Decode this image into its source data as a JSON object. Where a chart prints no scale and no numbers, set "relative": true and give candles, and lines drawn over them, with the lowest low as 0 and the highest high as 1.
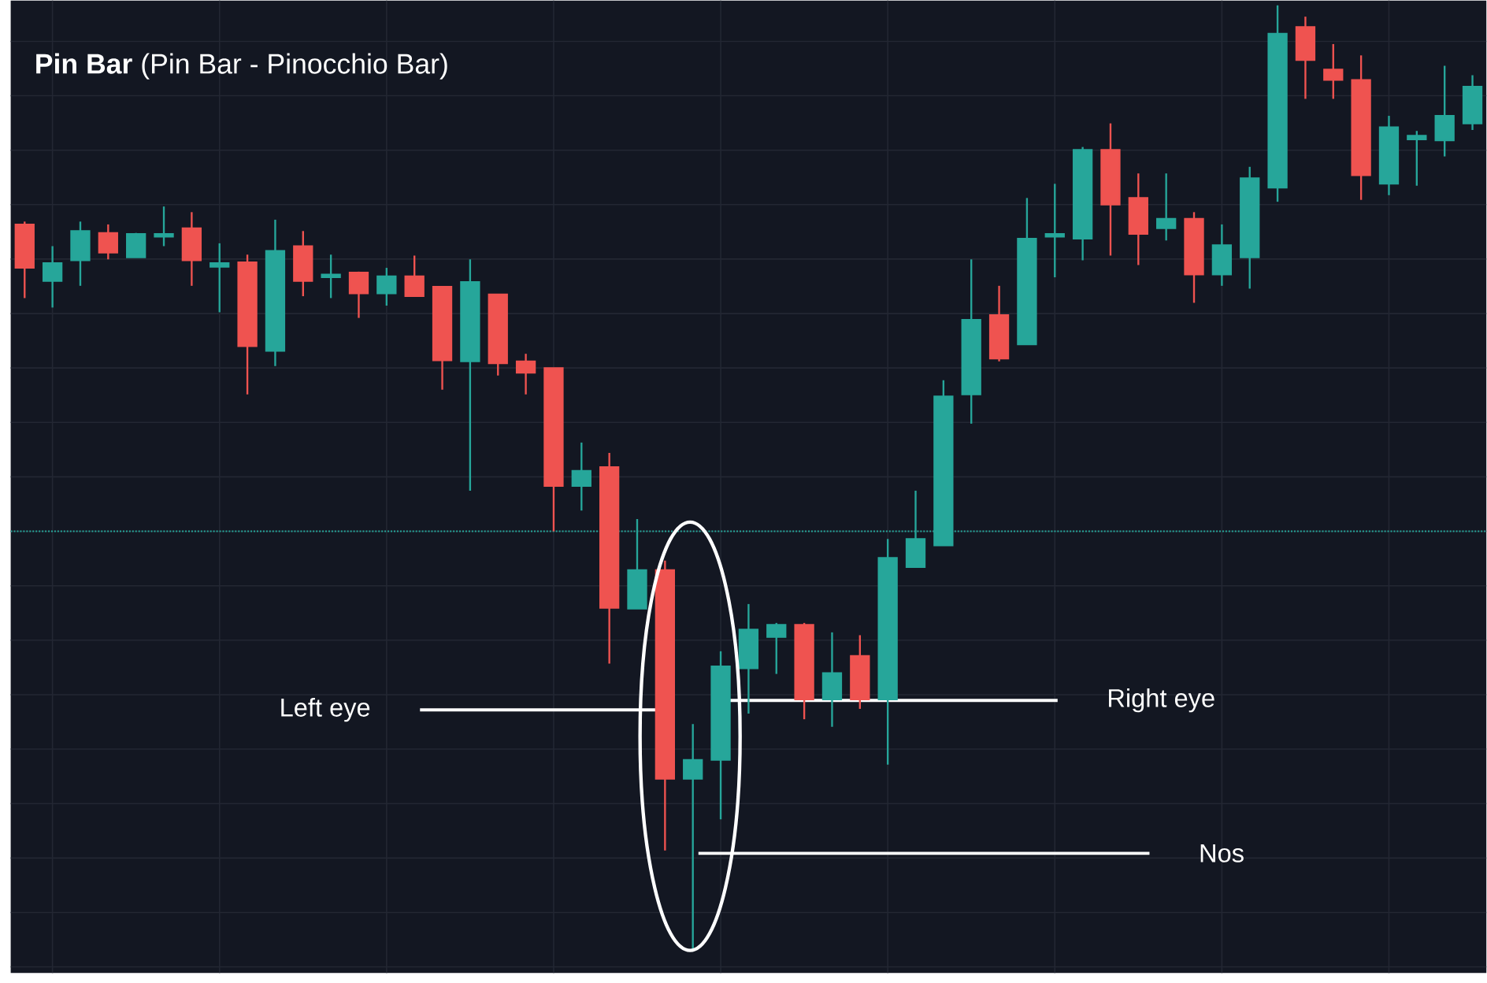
{
  "chart_data": {
    "type": "candlestick",
    "title": "**Pin Bar**  (Pin Bar  - Pinocchio Bar)",
    "relative": true,
    "grid": true,
    "categories": [
      null,
      null,
      null,
      null,
      null,
      null,
      null,
      null,
      null,
      null,
      null,
      null,
      null,
      null,
      null,
      null,
      null,
      null,
      null,
      null,
      null,
      null,
      null,
      null,
      null,
      null,
      null,
      null,
      null,
      null,
      null,
      null,
      null,
      null,
      null,
      null,
      null,
      null,
      null,
      null,
      null,
      null,
      null,
      null,
      null,
      null,
      null,
      null,
      null,
      null,
      null,
      null,
      null
    ],
    "ohlc": [
      [
        0.768,
        0.771,
        0.69,
        0.722
      ],
      [
        0.708,
        0.745,
        0.68,
        0.727
      ],
      [
        0.73,
        0.771,
        0.703,
        0.761
      ],
      [
        0.759,
        0.768,
        0.731,
        0.738
      ],
      [
        0.733,
        0.759,
        0.733,
        0.758
      ],
      [
        0.755,
        0.787,
        0.745,
        0.758
      ],
      [
        0.764,
        0.781,
        0.703,
        0.73
      ],
      [
        0.723,
        0.748,
        0.675,
        0.727
      ],
      [
        0.728,
        0.736,
        0.588,
        0.639
      ],
      [
        0.634,
        0.773,
        0.618,
        0.74
      ],
      [
        0.745,
        0.761,
        0.692,
        0.708
      ],
      [
        0.712,
        0.736,
        0.69,
        0.715
      ],
      [
        0.717,
        0.718,
        0.669,
        0.695
      ],
      [
        0.695,
        0.722,
        0.682,
        0.713
      ],
      [
        0.713,
        0.735,
        0.692,
        0.692
      ],
      [
        0.702,
        0.702,
        0.593,
        0.624
      ],
      [
        0.623,
        0.731,
        0.486,
        0.707
      ],
      [
        0.694,
        0.694,
        0.608,
        0.621
      ],
      [
        0.623,
        0.631,
        0.588,
        0.611
      ],
      [
        0.616,
        0.616,
        0.443,
        0.491
      ],
      [
        0.491,
        0.537,
        0.465,
        0.507
      ],
      [
        0.511,
        0.526,
        0.303,
        0.362
      ],
      [
        0.361,
        0.456,
        0.361,
        0.402
      ],
      [
        0.402,
        0.412,
        0.105,
        0.181
      ],
      [
        0.181,
        0.239,
        0.0,
        0.201
      ],
      [
        0.201,
        0.316,
        0.138,
        0.3
      ],
      [
        0.298,
        0.366,
        0.25,
        0.339
      ],
      [
        0.331,
        0.346,
        0.292,
        0.344
      ],
      [
        0.344,
        0.346,
        0.244,
        0.265
      ],
      [
        0.265,
        0.336,
        0.236,
        0.293
      ],
      [
        0.311,
        0.333,
        0.255,
        0.265
      ],
      [
        0.265,
        0.435,
        0.196,
        0.415
      ],
      [
        0.405,
        0.486,
        0.405,
        0.435
      ],
      [
        0.428,
        0.603,
        0.428,
        0.586
      ],
      [
        0.588,
        0.731,
        0.557,
        0.667
      ],
      [
        0.672,
        0.703,
        0.623,
        0.626
      ],
      [
        0.641,
        0.796,
        0.641,
        0.753
      ],
      [
        0.755,
        0.811,
        0.712,
        0.758
      ],
      [
        0.753,
        0.85,
        0.73,
        0.847
      ],
      [
        0.847,
        0.875,
        0.735,
        0.789
      ],
      [
        0.796,
        0.822,
        0.725,
        0.758
      ],
      [
        0.764,
        0.822,
        0.751,
        0.774
      ],
      [
        0.774,
        0.781,
        0.685,
        0.715
      ],
      [
        0.715,
        0.768,
        0.703,
        0.746
      ],
      [
        0.733,
        0.829,
        0.7,
        0.817
      ],
      [
        0.807,
        1.0,
        0.792,
        0.97
      ],
      [
        0.977,
        0.988,
        0.901,
        0.942
      ],
      [
        0.932,
        0.959,
        0.901,
        0.921
      ],
      [
        0.921,
        0.947,
        0.794,
        0.82
      ],
      [
        0.811,
        0.883,
        0.799,
        0.871
      ],
      [
        0.858,
        0.867,
        0.809,
        0.862
      ],
      [
        0.857,
        0.936,
        0.84,
        0.883
      ],
      [
        0.875,
        0.926,
        0.868,
        0.914
      ]
    ],
    "colors": [
      "#ef5350",
      "#26a69a",
      "#26a69a",
      "#ef5350",
      "#26a69a",
      "#26a69a",
      "#ef5350",
      "#26a69a",
      "#ef5350",
      "#26a69a",
      "#ef5350",
      "#26a69a",
      "#ef5350",
      "#26a69a",
      "#ef5350",
      "#ef5350",
      "#26a69a",
      "#ef5350",
      "#ef5350",
      "#ef5350",
      "#26a69a",
      "#ef5350",
      "#26a69a",
      "#ef5350",
      "#26a69a",
      "#26a69a",
      "#26a69a",
      "#26a69a",
      "#ef5350",
      "#26a69a",
      "#ef5350",
      "#26a69a",
      "#26a69a",
      "#26a69a",
      "#26a69a",
      "#ef5350",
      "#26a69a",
      "#26a69a",
      "#26a69a",
      "#ef5350",
      "#ef5350",
      "#26a69a",
      "#ef5350",
      "#26a69a",
      "#26a69a",
      "#26a69a",
      "#ef5350",
      "#ef5350",
      "#ef5350",
      "#26a69a",
      "#26a69a",
      "#26a69a",
      "#26a69a"
    ],
    "ref_lines": [
      {
        "axis": "y",
        "value": 0.443,
        "color": "#26a69a",
        "line_style": "dotted"
      },
      {
        "axis": "y",
        "value": 0.254,
        "label": "Left eye",
        "color": "#ffffff"
      },
      {
        "axis": "y",
        "value": 0.264,
        "label": "Right eye",
        "color": "#ffffff"
      },
      {
        "axis": "y",
        "value": 0.102,
        "label": "Nos",
        "color": "#ffffff"
      }
    ]
  }
}
